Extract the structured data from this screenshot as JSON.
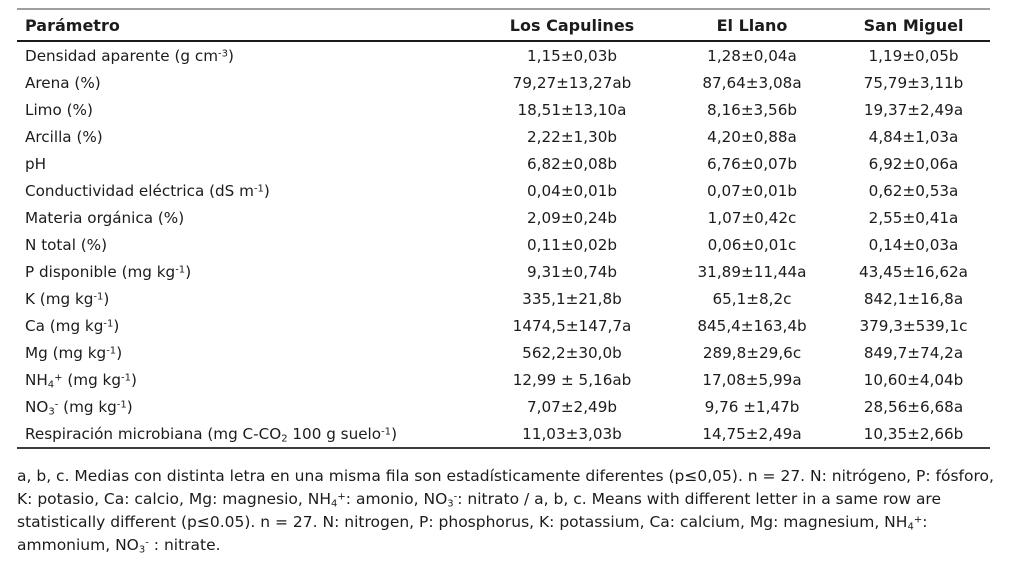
{
  "table": {
    "columns": [
      "Parámetro",
      "Los Capulines",
      "El Llano",
      "San Miguel"
    ],
    "rows": [
      {
        "label": [
          {
            "t": "Densidad aparente (g cm"
          },
          {
            "t": "-3",
            "s": "sup"
          },
          {
            "t": ")"
          }
        ],
        "values": [
          "1,15±0,03b",
          "1,28±0,04a",
          "1,19±0,05b"
        ]
      },
      {
        "label": [
          {
            "t": "Arena (%)"
          }
        ],
        "values": [
          "79,27±13,27ab",
          "87,64±3,08a",
          "75,79±3,11b"
        ]
      },
      {
        "label": [
          {
            "t": "Limo (%)"
          }
        ],
        "values": [
          "18,51±13,10a",
          "8,16±3,56b",
          "19,37±2,49a"
        ]
      },
      {
        "label": [
          {
            "t": "Arcilla (%)"
          }
        ],
        "values": [
          "2,22±1,30b",
          "4,20±0,88a",
          "4,84±1,03a"
        ]
      },
      {
        "label": [
          {
            "t": "pH"
          }
        ],
        "values": [
          "6,82±0,08b",
          "6,76±0,07b",
          "6,92±0,06a"
        ]
      },
      {
        "label": [
          {
            "t": "Conductividad eléctrica (dS m"
          },
          {
            "t": "-1",
            "s": "sup"
          },
          {
            "t": ")"
          }
        ],
        "values": [
          "0,04±0,01b",
          "0,07±0,01b",
          "0,62±0,53a"
        ]
      },
      {
        "label": [
          {
            "t": "Materia orgánica (%)"
          }
        ],
        "values": [
          "2,09±0,24b",
          "1,07±0,42c",
          "2,55±0,41a"
        ]
      },
      {
        "label": [
          {
            "t": "N total (%)"
          }
        ],
        "values": [
          "0,11±0,02b",
          "0,06±0,01c",
          "0,14±0,03a"
        ]
      },
      {
        "label": [
          {
            "t": "P disponible (mg kg"
          },
          {
            "t": "-1",
            "s": "sup"
          },
          {
            "t": ")"
          }
        ],
        "values": [
          "9,31±0,74b",
          "31,89±11,44a",
          "43,45±16,62a"
        ]
      },
      {
        "label": [
          {
            "t": "K (mg kg"
          },
          {
            "t": "-1",
            "s": "sup"
          },
          {
            "t": ")"
          }
        ],
        "values": [
          "335,1±21,8b",
          "65,1±8,2c",
          "842,1±16,8a"
        ]
      },
      {
        "label": [
          {
            "t": "Ca (mg kg"
          },
          {
            "t": "-1",
            "s": "sup"
          },
          {
            "t": ")"
          }
        ],
        "values": [
          "1474,5±147,7a",
          "845,4±163,4b",
          "379,3±539,1c"
        ]
      },
      {
        "label": [
          {
            "t": "Mg (mg kg"
          },
          {
            "t": "-1",
            "s": "sup"
          },
          {
            "t": ")"
          }
        ],
        "values": [
          "562,2±30,0b",
          "289,8±29,6c",
          "849,7±74,2a"
        ]
      },
      {
        "label": [
          {
            "t": "NH"
          },
          {
            "t": "4",
            "s": "sub"
          },
          {
            "t": "+",
            "s": "sup"
          },
          {
            "t": " (mg kg"
          },
          {
            "t": "-1",
            "s": "sup"
          },
          {
            "t": ")"
          }
        ],
        "values": [
          "12,99 ± 5,16ab",
          "17,08±5,99a",
          "10,60±4,04b"
        ]
      },
      {
        "label": [
          {
            "t": "NO"
          },
          {
            "t": "3",
            "s": "sub"
          },
          {
            "t": "-",
            "s": "sup"
          },
          {
            "t": " (mg kg"
          },
          {
            "t": "-1",
            "s": "sup"
          },
          {
            "t": ")"
          }
        ],
        "values": [
          "7,07±2,49b",
          "9,76 ±1,47b",
          "28,56±6,68a"
        ]
      },
      {
        "label": [
          {
            "t": "Respiración microbiana (mg C-CO"
          },
          {
            "t": "2",
            "s": "sub"
          },
          {
            "t": " 100 g suelo"
          },
          {
            "t": "-1",
            "s": "sup"
          },
          {
            "t": ")"
          }
        ],
        "values": [
          "11,03±3,03b",
          "14,75±2,49a",
          "10,35±2,66b"
        ]
      }
    ]
  },
  "footnote": {
    "segments": [
      {
        "t": "a, b, c. Medias con distinta letra en una misma fila son estadísticamente diferentes (p≤0,05). n = 27. N: nitrógeno, P: fósforo, K: potasio, Ca: calcio, Mg: magnesio, NH"
      },
      {
        "t": "4",
        "s": "sub"
      },
      {
        "t": "+",
        "s": "sup"
      },
      {
        "t": ": amonio, NO"
      },
      {
        "t": "3",
        "s": "sub"
      },
      {
        "t": "-",
        "s": "sup"
      },
      {
        "t": ": nitrato / a, b, c. Means with different letter in a same row are statistically different (p≤0.05). n = 27. N: nitrogen, P: phosphorus, K: potassium, Ca: calcium, Mg: magnesium, NH"
      },
      {
        "t": "4",
        "s": "sub"
      },
      {
        "t": "+",
        "s": "sup"
      },
      {
        "t": ": ammonium, NO"
      },
      {
        "t": "3",
        "s": "sub"
      },
      {
        "t": "-",
        "s": "sup"
      },
      {
        "t": " : nitrate."
      }
    ]
  },
  "colors": {
    "text": "#1c1c1c",
    "top_rule": "#9e9e9e",
    "header_rule": "#1a1a1a",
    "bottom_rule": "#3d3d3d",
    "background": "#ffffff"
  }
}
